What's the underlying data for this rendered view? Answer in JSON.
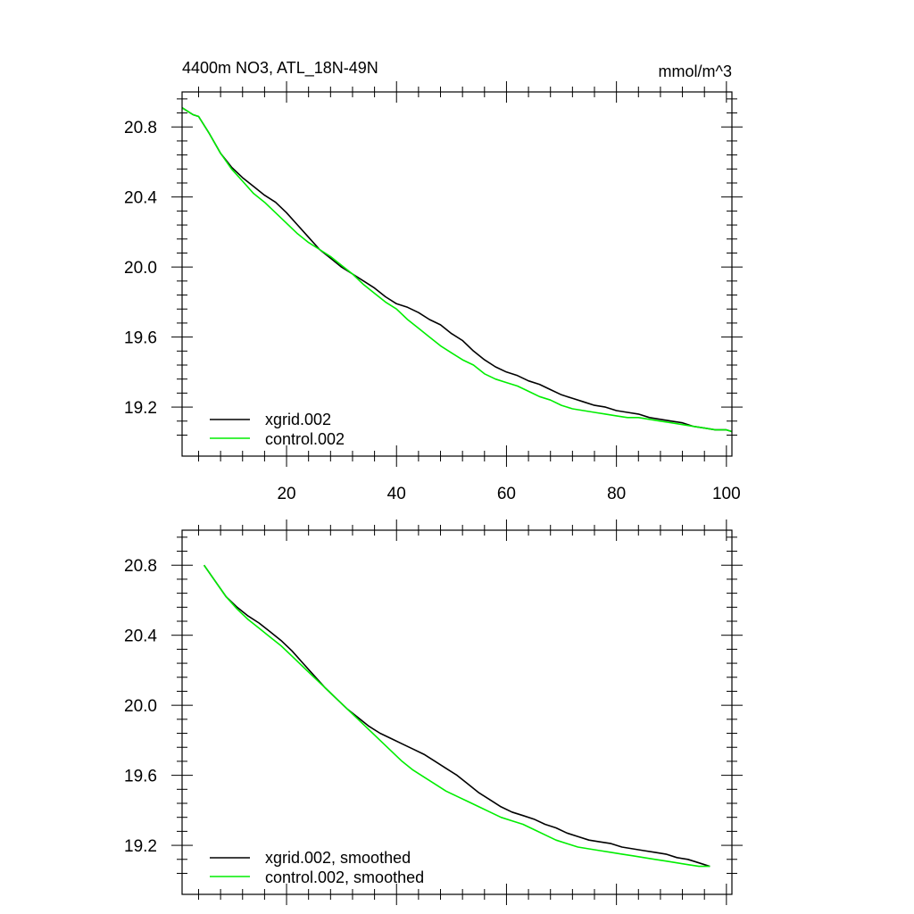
{
  "chart_data": [
    {
      "type": "line",
      "title": "4400m NO3, ATL_18N-49N",
      "units": "mmol/m^3",
      "xlim": [
        1,
        101
      ],
      "ylim": [
        18.92,
        21.0
      ],
      "xticks": [
        20,
        40,
        60,
        80,
        100
      ],
      "xtick_labels": [
        "20",
        "40",
        "60",
        "80",
        "100"
      ],
      "yticks": [
        19.2,
        19.6,
        20.0,
        20.4,
        20.8
      ],
      "ytick_labels": [
        "19.2",
        "19.6",
        "20.0",
        "20.4",
        "20.8"
      ],
      "legend_placement": "bottom-left",
      "series": [
        {
          "name": "xgrid.002",
          "color": "#000000",
          "x": [
            1,
            3,
            4,
            6,
            8,
            10,
            12,
            14,
            16,
            18,
            20,
            22,
            24,
            26,
            28,
            30,
            32,
            34,
            36,
            38,
            40,
            42,
            44,
            46,
            48,
            50,
            52,
            54,
            56,
            58,
            60,
            62,
            64,
            66,
            68,
            70,
            72,
            74,
            76,
            78,
            80,
            82,
            84,
            86,
            88,
            90,
            92,
            94,
            96,
            98,
            100,
            101
          ],
          "values": [
            20.91,
            20.87,
            20.86,
            20.76,
            20.65,
            20.57,
            20.51,
            20.46,
            20.41,
            20.37,
            20.31,
            20.24,
            20.17,
            20.1,
            20.05,
            20.0,
            19.96,
            19.92,
            19.88,
            19.83,
            19.79,
            19.77,
            19.74,
            19.7,
            19.67,
            19.62,
            19.58,
            19.52,
            19.47,
            19.43,
            19.4,
            19.38,
            19.35,
            19.33,
            19.3,
            19.27,
            19.25,
            19.23,
            19.21,
            19.2,
            19.18,
            19.17,
            19.16,
            19.14,
            19.13,
            19.12,
            19.11,
            19.09,
            19.08,
            19.07,
            19.07,
            19.06
          ]
        },
        {
          "name": "control.002",
          "color": "#00ee00",
          "x": [
            1,
            3,
            4,
            6,
            8,
            10,
            12,
            14,
            16,
            18,
            20,
            22,
            24,
            26,
            28,
            30,
            32,
            34,
            36,
            38,
            40,
            42,
            44,
            46,
            48,
            50,
            52,
            54,
            56,
            58,
            60,
            62,
            64,
            66,
            68,
            70,
            72,
            74,
            76,
            78,
            80,
            82,
            84,
            86,
            88,
            90,
            92,
            94,
            96,
            98,
            100,
            101
          ],
          "values": [
            20.91,
            20.87,
            20.86,
            20.76,
            20.65,
            20.56,
            20.49,
            20.42,
            20.37,
            20.31,
            20.25,
            20.19,
            20.14,
            20.1,
            20.06,
            20.01,
            19.96,
            19.9,
            19.85,
            19.8,
            19.76,
            19.7,
            19.65,
            19.6,
            19.55,
            19.51,
            19.47,
            19.44,
            19.39,
            19.36,
            19.34,
            19.32,
            19.29,
            19.26,
            19.24,
            19.21,
            19.19,
            19.18,
            19.17,
            19.16,
            19.15,
            19.14,
            19.14,
            19.13,
            19.12,
            19.11,
            19.1,
            19.09,
            19.08,
            19.07,
            19.07,
            19.06
          ]
        }
      ]
    },
    {
      "type": "line",
      "title": "",
      "xlim": [
        1,
        101
      ],
      "ylim": [
        18.92,
        21.0
      ],
      "xticks": [
        20,
        40,
        60,
        80,
        100
      ],
      "xtick_labels": [
        "",
        "",
        "",
        "",
        ""
      ],
      "yticks": [
        19.2,
        19.6,
        20.0,
        20.4,
        20.8
      ],
      "ytick_labels": [
        "19.2",
        "19.6",
        "20.0",
        "20.4",
        "20.8"
      ],
      "legend_placement": "bottom-left",
      "series": [
        {
          "name": "xgrid.002, smoothed",
          "color": "#000000",
          "x": [
            5,
            7,
            9,
            11,
            13,
            15,
            17,
            19,
            21,
            23,
            25,
            27,
            29,
            31,
            33,
            35,
            37,
            39,
            41,
            43,
            45,
            47,
            49,
            51,
            53,
            55,
            57,
            59,
            61,
            63,
            65,
            67,
            69,
            71,
            73,
            75,
            77,
            79,
            81,
            83,
            85,
            87,
            89,
            91,
            93,
            95,
            97
          ],
          "values": [
            20.8,
            20.71,
            20.62,
            20.56,
            20.51,
            20.47,
            20.42,
            20.37,
            20.31,
            20.24,
            20.17,
            20.1,
            20.04,
            19.98,
            19.93,
            19.88,
            19.84,
            19.81,
            19.78,
            19.75,
            19.72,
            19.68,
            19.64,
            19.6,
            19.55,
            19.5,
            19.46,
            19.42,
            19.39,
            19.37,
            19.35,
            19.32,
            19.3,
            19.27,
            19.25,
            19.23,
            19.22,
            19.21,
            19.19,
            19.18,
            19.17,
            19.16,
            19.15,
            19.13,
            19.12,
            19.1,
            19.08
          ]
        },
        {
          "name": "control.002, smoothed",
          "color": "#00ee00",
          "x": [
            5,
            7,
            9,
            11,
            13,
            15,
            17,
            19,
            21,
            23,
            25,
            27,
            29,
            31,
            33,
            35,
            37,
            39,
            41,
            43,
            45,
            47,
            49,
            51,
            53,
            55,
            57,
            59,
            61,
            63,
            65,
            67,
            69,
            71,
            73,
            75,
            77,
            79,
            81,
            83,
            85,
            87,
            89,
            91,
            93,
            95,
            97
          ],
          "values": [
            20.8,
            20.71,
            20.62,
            20.55,
            20.49,
            20.44,
            20.39,
            20.34,
            20.28,
            20.22,
            20.16,
            20.1,
            20.04,
            19.98,
            19.92,
            19.86,
            19.8,
            19.74,
            19.68,
            19.63,
            19.59,
            19.55,
            19.51,
            19.48,
            19.45,
            19.42,
            19.39,
            19.36,
            19.34,
            19.32,
            19.29,
            19.26,
            19.23,
            19.21,
            19.19,
            19.18,
            19.17,
            19.16,
            19.15,
            19.14,
            19.13,
            19.12,
            19.11,
            19.1,
            19.09,
            19.08,
            19.08
          ]
        }
      ]
    }
  ]
}
